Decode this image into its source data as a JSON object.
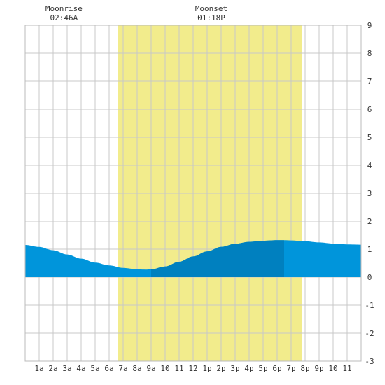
{
  "chart_data": {
    "type": "area",
    "title": "",
    "xlabel": "",
    "ylabel": "",
    "x_ticks": [
      "1a",
      "2a",
      "3a",
      "4a",
      "5a",
      "6a",
      "7a",
      "8a",
      "9a",
      "10",
      "11",
      "12",
      "1p",
      "2p",
      "3p",
      "4p",
      "5p",
      "6p",
      "7p",
      "8p",
      "9p",
      "10",
      "11"
    ],
    "x_range_hours": [
      0,
      24
    ],
    "ylim": [
      -3,
      9
    ],
    "y_ticks": [
      9,
      8,
      7,
      6,
      5,
      4,
      3,
      2,
      1,
      0,
      -1,
      -2,
      -3
    ],
    "grid": true,
    "daylight": {
      "start_hour": 6.65,
      "end_hour": 19.8,
      "color": "#f2ec8c"
    },
    "colors": {
      "tide": "#0095db",
      "tide_dark": "#0080bf",
      "grid": "#c8c8c8"
    },
    "tide_series": {
      "name": "",
      "x": [
        0,
        1,
        2,
        3,
        4,
        5,
        6,
        7,
        8,
        8.6,
        9,
        10,
        11,
        12,
        13,
        14,
        15,
        16,
        17,
        18,
        18.5,
        19,
        20,
        21,
        22,
        23,
        24
      ],
      "values": [
        1.15,
        1.08,
        0.96,
        0.81,
        0.66,
        0.52,
        0.42,
        0.33,
        0.28,
        0.27,
        0.28,
        0.38,
        0.55,
        0.74,
        0.92,
        1.08,
        1.19,
        1.26,
        1.3,
        1.32,
        1.32,
        1.31,
        1.28,
        1.24,
        1.2,
        1.17,
        1.16
      ]
    },
    "dark_fill_range_hours": [
      9,
      18.5
    ],
    "annotations": [
      {
        "id": "moonrise",
        "label": "Moonrise",
        "time": "02:46A",
        "hour": 2.77
      },
      {
        "id": "moonset",
        "label": "Moonset",
        "time": "01:18P",
        "hour": 13.3
      }
    ]
  }
}
